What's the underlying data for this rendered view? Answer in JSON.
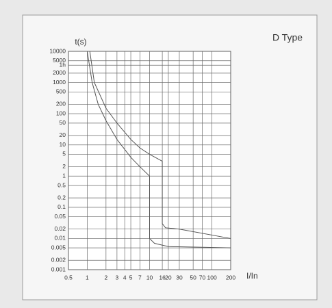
{
  "chart_data": {
    "type": "line",
    "title": "D Type",
    "ylabel": "t(s)",
    "xlabel": "I/In",
    "log_x": true,
    "log_y": true,
    "grid": true,
    "xlim": [
      0.5,
      200
    ],
    "xticks": [
      0.5,
      1,
      2,
      3,
      4,
      5,
      7,
      10,
      16,
      20,
      30,
      50,
      70,
      100,
      200
    ],
    "ylim": [
      0.001,
      10000
    ],
    "yticks": [
      10000,
      5000,
      {
        "value": 3600,
        "label": "1h"
      },
      2000,
      1000,
      500,
      200,
      100,
      50,
      20,
      10,
      5,
      2,
      1,
      0.5,
      0.2,
      0.1,
      0.05,
      0.02,
      0.01,
      0.005,
      0.002,
      0.001
    ],
    "series": [
      {
        "color": "#555555",
        "x": [
          1.1,
          1.3,
          2,
          3,
          5,
          7,
          10,
          16,
          16,
          18,
          30,
          200
        ],
        "values": [
          10000,
          1000,
          150,
          50,
          15,
          8,
          5,
          3,
          0.03,
          0.022,
          0.02,
          0.01
        ]
      },
      {
        "color": "#555555",
        "x": [
          1,
          1.2,
          1.5,
          2,
          3,
          5,
          7,
          10,
          10,
          12,
          20,
          200
        ],
        "values": [
          10000,
          1000,
          200,
          60,
          15,
          4,
          2,
          1,
          0.01,
          0.007,
          0.0055,
          0.005
        ]
      }
    ]
  }
}
